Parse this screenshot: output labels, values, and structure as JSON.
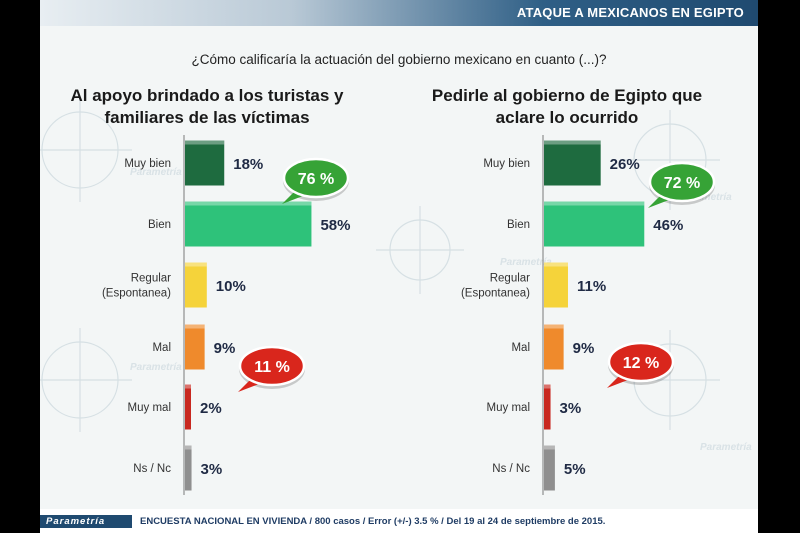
{
  "header": {
    "title": "ATAQUE A MEXICANOS EN EGIPTO"
  },
  "question": "¿Cómo calificaría la actuación del gobierno mexicano en cuanto (...)?",
  "footer": {
    "brand": "Parametría",
    "text": "ENCUESTA NACIONAL EN VIVIENDA / 800 casos / Error (+/-) 3.5 % / Del 19 al 24 de septiembre de 2015."
  },
  "watermark": "Parametría",
  "colors": [
    "#1e6b3f",
    "#2ec27a",
    "#f5d33a",
    "#ef8a2c",
    "#c8281f",
    "#8f8f8f"
  ],
  "chart_data": [
    {
      "type": "bar",
      "title_lines": [
        "Al apoyo brindado a los turistas y",
        "familiares de las víctimas"
      ],
      "categories": [
        [
          "Muy bien"
        ],
        [
          "Bien"
        ],
        [
          "Regular",
          "(Espontanea)"
        ],
        [
          "Mal"
        ],
        [
          "Muy mal"
        ],
        [
          "Ns / Nc"
        ]
      ],
      "values": [
        18,
        58,
        10,
        9,
        2,
        3
      ],
      "labels": [
        "18%",
        "58%",
        "10%",
        "9%",
        "2%",
        "3%"
      ],
      "annotations": [
        {
          "text": "76 %",
          "color": "green"
        },
        {
          "text": "11 %",
          "color": "red"
        }
      ]
    },
    {
      "type": "bar",
      "title_lines": [
        "Pedirle al gobierno de Egipto que",
        "aclare lo ocurrido"
      ],
      "categories": [
        [
          "Muy bien"
        ],
        [
          "Bien"
        ],
        [
          "Regular",
          "(Espontanea)"
        ],
        [
          "Mal"
        ],
        [
          "Muy mal"
        ],
        [
          "Ns / Nc"
        ]
      ],
      "values": [
        26,
        46,
        11,
        9,
        3,
        5
      ],
      "labels": [
        "26%",
        "46%",
        "11%",
        "9%",
        "3%",
        "5%"
      ],
      "annotations": [
        {
          "text": "72 %",
          "color": "green"
        },
        {
          "text": "12 %",
          "color": "red"
        }
      ]
    }
  ]
}
